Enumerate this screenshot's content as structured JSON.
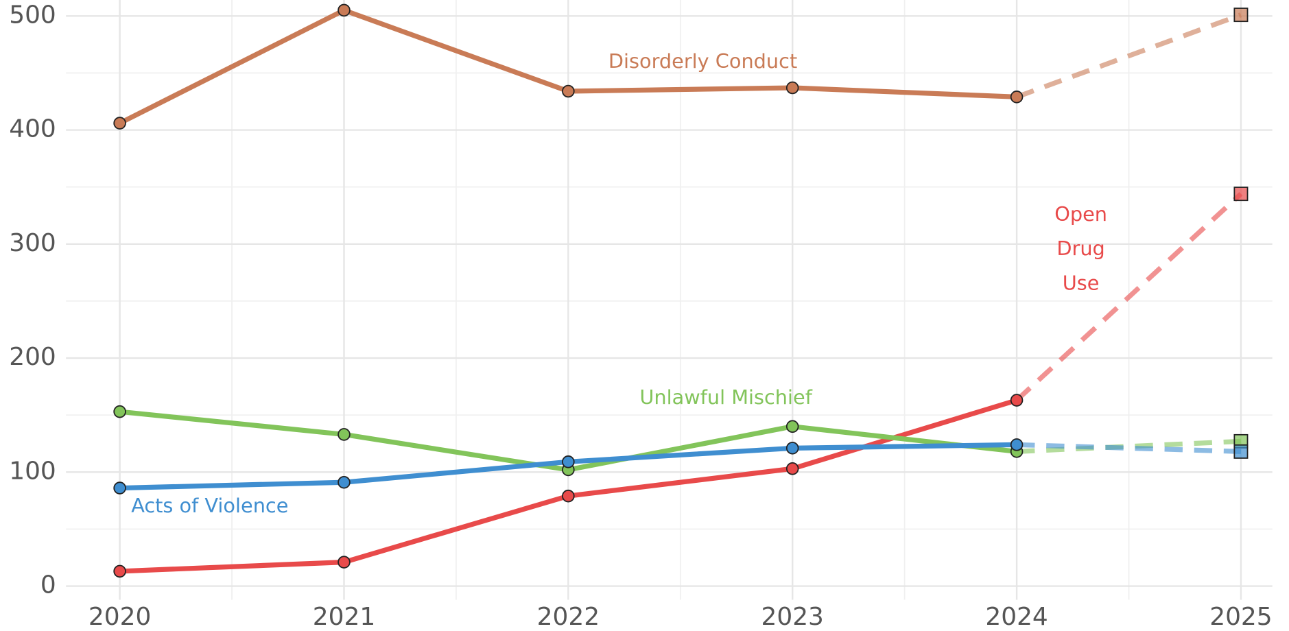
{
  "chart_data": {
    "type": "line",
    "x": [
      2020,
      2021,
      2022,
      2023,
      2024,
      2025
    ],
    "forecast_from": 2024,
    "series": [
      {
        "name": "Disorderly Conduct",
        "color": "#c97b56",
        "values": [
          406,
          505,
          434,
          437,
          429,
          501
        ]
      },
      {
        "name": "Open Drug Use",
        "color": "#e84a4a",
        "values": [
          13,
          21,
          79,
          103,
          163,
          344
        ]
      },
      {
        "name": "Unlawful Mischief",
        "color": "#82c45a",
        "values": [
          153,
          133,
          102,
          140,
          118,
          127
        ]
      },
      {
        "name": "Acts of Violence",
        "color": "#3f8ed0",
        "values": [
          86,
          91,
          109,
          121,
          124,
          118
        ]
      }
    ],
    "xlim": [
      2019.76,
      2025.14
    ],
    "xticks": [
      2020,
      2021,
      2022,
      2023,
      2024,
      2025
    ],
    "ylim": [
      -12,
      514
    ],
    "yticks": [
      0,
      100,
      200,
      300,
      400,
      500
    ],
    "grid": true
  }
}
